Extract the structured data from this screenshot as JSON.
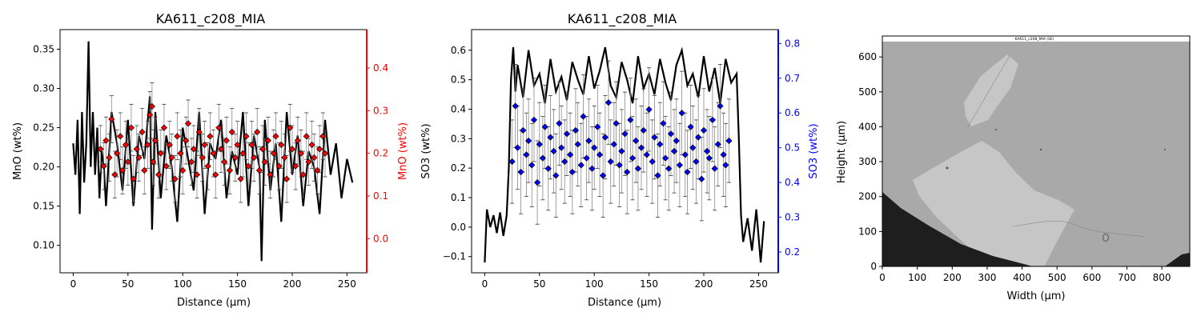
{
  "figure": {
    "panels": [
      "mno-profile",
      "so3-profile",
      "sem-image"
    ]
  },
  "chart_data": [
    {
      "type": "line",
      "title": "KA611_c208_MIA",
      "xlabel": "Distance (µm)",
      "ylabel": "MnO (wt%)",
      "ylabel_right": "MnO (wt%)",
      "right_axis_color": "#ff0000",
      "xlim": [
        -12,
        268
      ],
      "ylim": [
        0.065,
        0.375
      ],
      "ylim_right": [
        -0.08,
        0.49
      ],
      "xticks": [
        "0",
        "50",
        "100",
        "150",
        "200",
        "250"
      ],
      "yticks": [
        "0.10",
        "0.15",
        "0.20",
        "0.25",
        "0.30",
        "0.35"
      ],
      "yticks_right": [
        "0.0",
        "0.1",
        "0.2",
        "0.3",
        "0.4"
      ],
      "grid": false,
      "series": [
        {
          "style": "black line",
          "x": [
            0,
            2,
            4,
            6,
            8,
            10,
            12,
            14,
            16,
            18,
            20,
            22,
            24,
            26,
            28,
            30,
            35,
            40,
            45,
            50,
            55,
            60,
            65,
            70,
            72,
            75,
            80,
            85,
            90,
            95,
            100,
            105,
            110,
            115,
            120,
            125,
            130,
            135,
            140,
            145,
            150,
            155,
            160,
            165,
            170,
            172,
            175,
            180,
            185,
            190,
            195,
            200,
            205,
            210,
            215,
            220,
            225,
            230,
            235,
            240,
            245,
            250,
            255
          ],
          "y": [
            0.23,
            0.19,
            0.26,
            0.14,
            0.27,
            0.18,
            0.23,
            0.36,
            0.2,
            0.27,
            0.19,
            0.25,
            0.16,
            0.22,
            0.2,
            0.15,
            0.27,
            0.23,
            0.17,
            0.26,
            0.15,
            0.24,
            0.21,
            0.29,
            0.12,
            0.27,
            0.16,
            0.24,
            0.2,
            0.13,
            0.25,
            0.21,
            0.17,
            0.27,
            0.14,
            0.23,
            0.21,
            0.26,
            0.16,
            0.22,
            0.19,
            0.27,
            0.15,
            0.24,
            0.2,
            0.08,
            0.26,
            0.17,
            0.23,
            0.13,
            0.27,
            0.19,
            0.24,
            0.15,
            0.22,
            0.2,
            0.14,
            0.26,
            0.19,
            0.23,
            0.16,
            0.21,
            0.18
          ]
        },
        {
          "style": "red diamond markers with grey error bars",
          "x": [
            25,
            28,
            30,
            33,
            35,
            38,
            40,
            43,
            45,
            48,
            50,
            53,
            55,
            58,
            60,
            63,
            65,
            68,
            70,
            72,
            73,
            75,
            78,
            80,
            83,
            85,
            88,
            90,
            93,
            95,
            98,
            100,
            103,
            105,
            108,
            110,
            113,
            115,
            118,
            120,
            123,
            125,
            128,
            130,
            133,
            135,
            138,
            140,
            143,
            145,
            148,
            150,
            153,
            155,
            158,
            160,
            163,
            165,
            168,
            170,
            173,
            175,
            178,
            180,
            183,
            185,
            188,
            190,
            193,
            195,
            198,
            200,
            203,
            205,
            208,
            210,
            213,
            215,
            218,
            220,
            223,
            225,
            228,
            230
          ],
          "y": [
            0.21,
            0.17,
            0.23,
            0.19,
            0.28,
            0.15,
            0.2,
            0.24,
            0.16,
            0.22,
            0.18,
            0.26,
            0.14,
            0.21,
            0.19,
            0.25,
            0.16,
            0.22,
            0.29,
            0.31,
            0.18,
            0.23,
            0.15,
            0.2,
            0.26,
            0.17,
            0.22,
            0.19,
            0.14,
            0.24,
            0.2,
            0.16,
            0.23,
            0.27,
            0.18,
            0.21,
            0.15,
            0.25,
            0.19,
            0.22,
            0.17,
            0.24,
            0.2,
            0.15,
            0.26,
            0.21,
            0.18,
            0.23,
            0.16,
            0.25,
            0.19,
            0.22,
            0.14,
            0.2,
            0.24,
            0.17,
            0.22,
            0.19,
            0.25,
            0.16,
            0.21,
            0.18,
            0.23,
            0.15,
            0.2,
            0.24,
            0.17,
            0.22,
            0.19,
            0.14,
            0.26,
            0.21,
            0.17,
            0.23,
            0.2,
            0.15,
            0.24,
            0.18,
            0.22,
            0.19,
            0.16,
            0.21,
            0.24,
            0.2
          ],
          "err": 0.055
        }
      ]
    },
    {
      "type": "line",
      "title": "KA611_c208_MIA",
      "xlabel": "Distance (µm)",
      "ylabel": "SO3 (wt%)",
      "ylabel_right": "SO3 (wt%)",
      "right_axis_color": "#0000ff",
      "xlim": [
        -12,
        268
      ],
      "ylim": [
        -0.155,
        0.67
      ],
      "ylim_right": [
        0.14,
        0.84
      ],
      "xticks": [
        "0",
        "50",
        "100",
        "150",
        "200",
        "250"
      ],
      "yticks": [
        "−0.1",
        "0.0",
        "0.1",
        "0.2",
        "0.3",
        "0.4",
        "0.5",
        "0.6"
      ],
      "yticks_right": [
        "0.2",
        "0.3",
        "0.4",
        "0.5",
        "0.6",
        "0.7",
        "0.8"
      ],
      "grid": false,
      "series": [
        {
          "style": "black line",
          "x": [
            0,
            2,
            5,
            8,
            11,
            14,
            17,
            20,
            22,
            24,
            26,
            28,
            30,
            35,
            40,
            45,
            50,
            55,
            60,
            65,
            70,
            75,
            80,
            85,
            90,
            95,
            100,
            105,
            110,
            115,
            120,
            125,
            130,
            135,
            140,
            145,
            150,
            155,
            160,
            165,
            170,
            175,
            180,
            185,
            190,
            195,
            200,
            205,
            210,
            215,
            220,
            225,
            230,
            232,
            234,
            236,
            240,
            244,
            248,
            252,
            255
          ],
          "y": [
            -0.12,
            0.06,
            0.0,
            0.04,
            -0.02,
            0.05,
            -0.03,
            0.04,
            0.2,
            0.5,
            0.61,
            0.46,
            0.55,
            0.44,
            0.6,
            0.48,
            0.52,
            0.42,
            0.57,
            0.46,
            0.51,
            0.43,
            0.56,
            0.5,
            0.45,
            0.58,
            0.47,
            0.53,
            0.61,
            0.48,
            0.44,
            0.56,
            0.5,
            0.42,
            0.58,
            0.47,
            0.52,
            0.45,
            0.57,
            0.49,
            0.43,
            0.55,
            0.6,
            0.48,
            0.52,
            0.44,
            0.58,
            0.46,
            0.54,
            0.42,
            0.57,
            0.49,
            0.52,
            0.3,
            0.04,
            -0.05,
            0.03,
            -0.08,
            0.06,
            -0.12,
            0.02
          ]
        },
        {
          "style": "blue diamond markers with grey error bars",
          "x": [
            25,
            28,
            30,
            33,
            35,
            38,
            40,
            43,
            45,
            48,
            50,
            53,
            55,
            58,
            60,
            63,
            65,
            68,
            70,
            73,
            75,
            78,
            80,
            83,
            85,
            88,
            90,
            93,
            95,
            98,
            100,
            103,
            105,
            108,
            110,
            113,
            115,
            118,
            120,
            123,
            125,
            128,
            130,
            133,
            135,
            138,
            140,
            143,
            145,
            148,
            150,
            153,
            155,
            158,
            160,
            163,
            165,
            168,
            170,
            173,
            175,
            178,
            180,
            183,
            185,
            188,
            190,
            193,
            195,
            198,
            200,
            203,
            205,
            208,
            210,
            213,
            215,
            218,
            220,
            223
          ],
          "y": [
            0.46,
            0.62,
            0.5,
            0.43,
            0.55,
            0.48,
            0.52,
            0.45,
            0.58,
            0.4,
            0.51,
            0.47,
            0.56,
            0.44,
            0.53,
            0.49,
            0.42,
            0.57,
            0.5,
            0.46,
            0.54,
            0.48,
            0.43,
            0.55,
            0.51,
            0.45,
            0.59,
            0.47,
            0.52,
            0.44,
            0.5,
            0.56,
            0.48,
            0.42,
            0.53,
            0.63,
            0.46,
            0.51,
            0.57,
            0.45,
            0.49,
            0.54,
            0.43,
            0.58,
            0.47,
            0.52,
            0.44,
            0.5,
            0.55,
            0.48,
            0.61,
            0.46,
            0.53,
            0.42,
            0.51,
            0.57,
            0.47,
            0.44,
            0.54,
            0.49,
            0.52,
            0.45,
            0.6,
            0.48,
            0.43,
            0.56,
            0.5,
            0.46,
            0.53,
            0.41,
            0.55,
            0.49,
            0.47,
            0.58,
            0.44,
            0.51,
            0.62,
            0.48,
            0.45,
            0.52
          ],
          "err": 0.12
        }
      ]
    },
    {
      "type": "image",
      "title": "KA611_c208_MIA (SE)",
      "xlabel": "Width (µm)",
      "ylabel": "Height (µm)",
      "xlim": [
        0,
        880
      ],
      "ylim": [
        0,
        660
      ],
      "xticks": [
        "0",
        "100",
        "200",
        "300",
        "400",
        "500",
        "600",
        "700",
        "800"
      ],
      "yticks": [
        "0",
        "100",
        "200",
        "300",
        "400",
        "500",
        "600"
      ],
      "colors": {
        "matrix": "#a9a9a9",
        "bright_phase": "#c6c6c6",
        "dark_phase": "#1e1e1e",
        "header_strip": "#ffffff"
      }
    }
  ]
}
